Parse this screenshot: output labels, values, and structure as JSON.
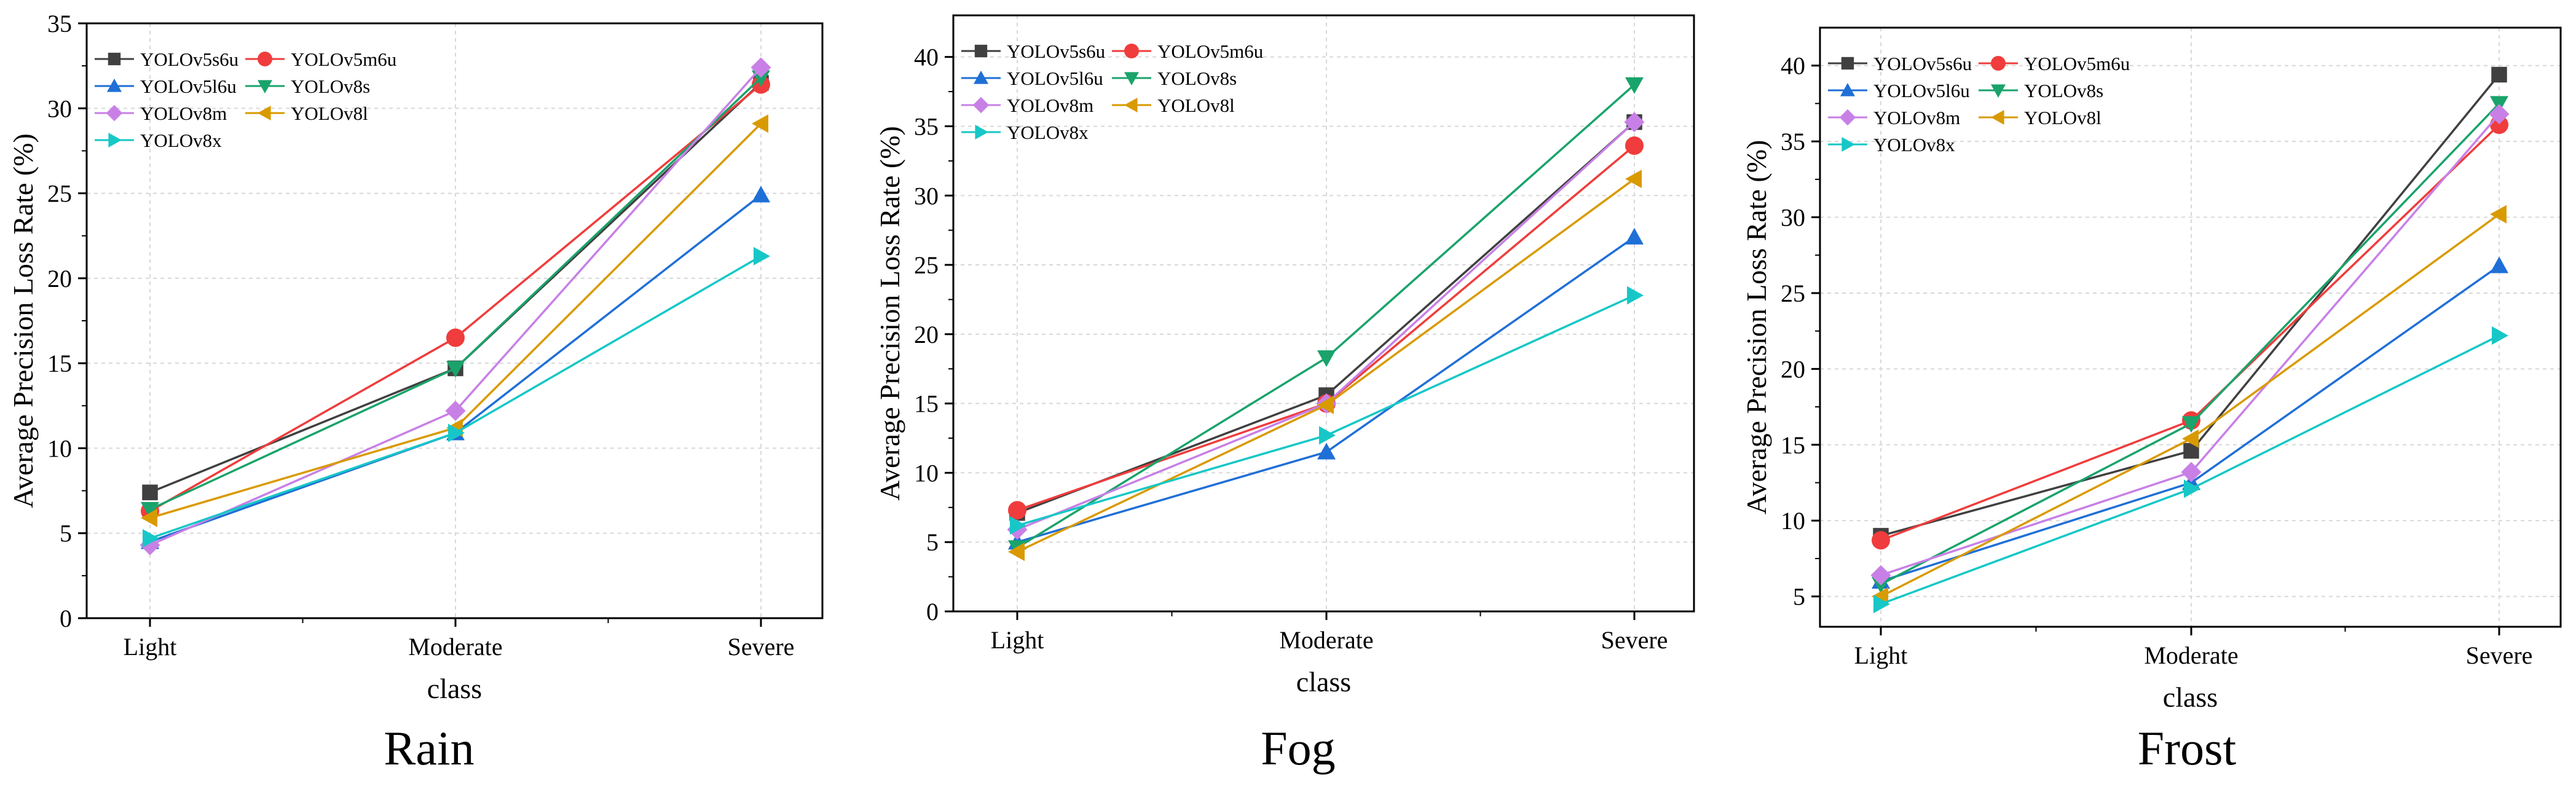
{
  "series_styles": [
    {
      "name": "YOLOv5s6u",
      "color": "#404040",
      "marker": "square"
    },
    {
      "name": "YOLOv5m6u",
      "color": "#f03c3c",
      "marker": "circle"
    },
    {
      "name": "YOLOv5l6u",
      "color": "#1f6fd6",
      "marker": "triangle-up"
    },
    {
      "name": "YOLOv8s",
      "color": "#1aa36b",
      "marker": "triangle-down"
    },
    {
      "name": "YOLOv8m",
      "color": "#c880e6",
      "marker": "diamond"
    },
    {
      "name": "YOLOv8l",
      "color": "#d99a00",
      "marker": "triangle-left"
    },
    {
      "name": "YOLOv8x",
      "color": "#17c7c7",
      "marker": "triangle-right"
    }
  ],
  "chart_data": [
    {
      "type": "line",
      "title": "Rain",
      "xlabel": "class",
      "ylabel": "Average Precision Loss Rate (%)",
      "categories": [
        "Light",
        "Moderate",
        "Severe"
      ],
      "ylim": [
        0,
        35
      ],
      "yticks": [
        0,
        5,
        10,
        15,
        20,
        25,
        30,
        35
      ],
      "grid": true,
      "legend": "top-left",
      "series": [
        {
          "name": "YOLOv5s6u",
          "values": [
            7.4,
            14.7,
            31.5
          ]
        },
        {
          "name": "YOLOv5m6u",
          "values": [
            6.3,
            16.5,
            31.4
          ]
        },
        {
          "name": "YOLOv5l6u",
          "values": [
            4.5,
            10.9,
            24.9
          ]
        },
        {
          "name": "YOLOv8s",
          "values": [
            6.4,
            14.7,
            31.8
          ]
        },
        {
          "name": "YOLOv8m",
          "values": [
            4.3,
            12.2,
            32.4
          ]
        },
        {
          "name": "YOLOv8l",
          "values": [
            5.9,
            11.2,
            29.1
          ]
        },
        {
          "name": "YOLOv8x",
          "values": [
            4.7,
            10.9,
            21.3
          ]
        }
      ]
    },
    {
      "type": "line",
      "title": "Fog",
      "xlabel": "class",
      "ylabel": "Average Precision Loss Rate (%)",
      "categories": [
        "Light",
        "Moderate",
        "Severe"
      ],
      "ylim": [
        0,
        43
      ],
      "yticks": [
        0,
        5,
        10,
        15,
        20,
        25,
        30,
        35,
        40
      ],
      "grid": true,
      "legend": "top-left",
      "series": [
        {
          "name": "YOLOv5s6u",
          "values": [
            7.1,
            15.6,
            35.3
          ]
        },
        {
          "name": "YOLOv5m6u",
          "values": [
            7.3,
            15.0,
            33.6
          ]
        },
        {
          "name": "YOLOv5l6u",
          "values": [
            5.0,
            11.5,
            27.0
          ]
        },
        {
          "name": "YOLOv8s",
          "values": [
            4.6,
            18.3,
            38.0
          ]
        },
        {
          "name": "YOLOv8m",
          "values": [
            5.9,
            15.0,
            35.3
          ]
        },
        {
          "name": "YOLOv8l",
          "values": [
            4.3,
            14.9,
            31.2
          ]
        },
        {
          "name": "YOLOv8x",
          "values": [
            6.2,
            12.7,
            22.8
          ]
        }
      ]
    },
    {
      "type": "line",
      "title": "Frost",
      "xlabel": "class",
      "ylabel": "Average Precision Loss Rate (%)",
      "categories": [
        "Light",
        "Moderate",
        "Severe"
      ],
      "ylim": [
        3,
        42.5
      ],
      "yticks": [
        5,
        10,
        15,
        20,
        25,
        30,
        35,
        40
      ],
      "grid": true,
      "legend": "top-left",
      "series": [
        {
          "name": "YOLOv5s6u",
          "values": [
            9.0,
            14.6,
            39.4
          ]
        },
        {
          "name": "YOLOv5m6u",
          "values": [
            8.7,
            16.6,
            36.1
          ]
        },
        {
          "name": "YOLOv5l6u",
          "values": [
            6.0,
            12.5,
            26.8
          ]
        },
        {
          "name": "YOLOv8s",
          "values": [
            5.8,
            16.4,
            37.5
          ]
        },
        {
          "name": "YOLOv8m",
          "values": [
            6.4,
            13.2,
            36.8
          ]
        },
        {
          "name": "YOLOv8l",
          "values": [
            5.0,
            15.4,
            30.2
          ]
        },
        {
          "name": "YOLOv8x",
          "values": [
            4.5,
            12.1,
            22.2
          ]
        }
      ]
    }
  ]
}
